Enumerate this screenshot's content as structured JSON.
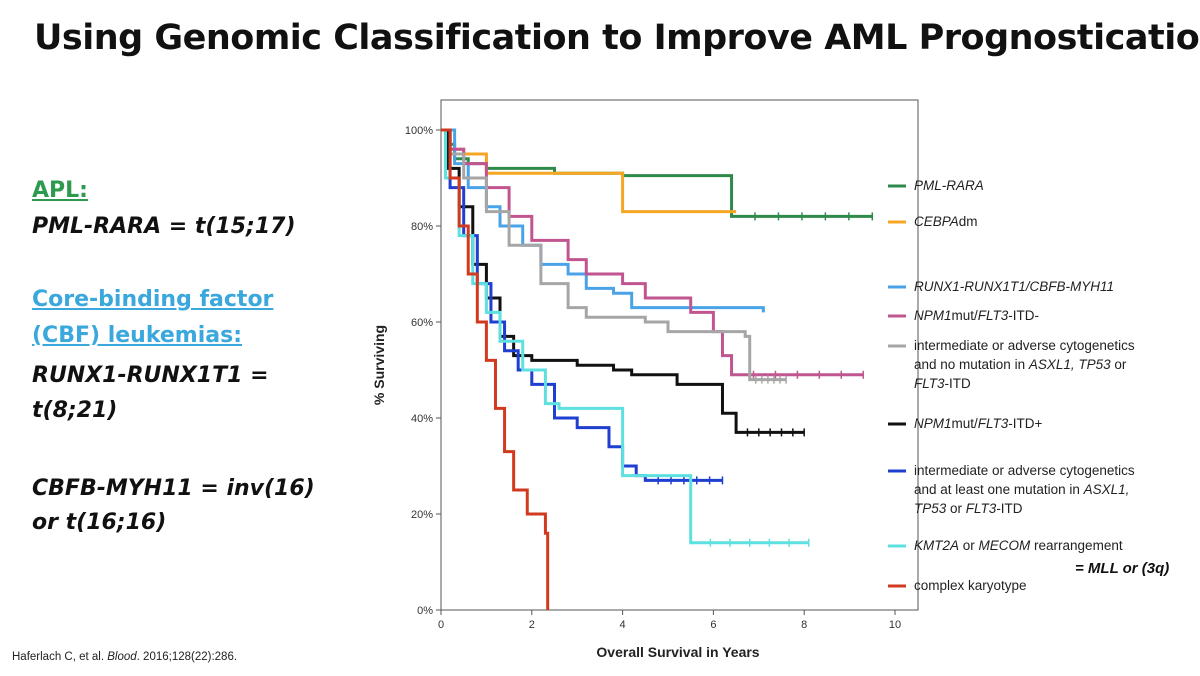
{
  "title": "Using Genomic Classification to Improve AML Prognostication",
  "left_panel": {
    "apl_heading": "APL:",
    "apl_line": "PML-RARA = t(15;17)",
    "cbf_heading_line1": "Core-binding factor",
    "cbf_heading_line2": "(CBF) leukemias:",
    "runx_line1": "RUNX1-RUNX1T1 =",
    "runx_line2": "t(8;21)",
    "cbfb_line1": "CBFB-MYH11 = inv(16)",
    "cbfb_line2": "or t(16;16)"
  },
  "citation": {
    "authors": "Haferlach C, et al. ",
    "journal": "Blood",
    "details": ". 2016;128(22):286."
  },
  "note": "= MLL or (3q)",
  "chart_data": {
    "type": "line",
    "xlabel": "Overall Survival in Years",
    "ylabel": "% Surviving",
    "xlim": [
      0,
      10
    ],
    "ylim": [
      0,
      100
    ],
    "x_ticks": [
      "0",
      "2",
      "4",
      "6",
      "8",
      "10"
    ],
    "y_ticks": [
      "0%",
      "20%",
      "40%",
      "60%",
      "80%",
      "100%"
    ],
    "legend_position": "right",
    "series": [
      {
        "name": "PML-RARA",
        "color": "#2e8a4a",
        "points": [
          [
            0,
            100
          ],
          [
            0.1,
            97
          ],
          [
            0.3,
            94
          ],
          [
            0.6,
            93
          ],
          [
            1.0,
            92
          ],
          [
            2.5,
            91
          ],
          [
            4.0,
            90.5
          ],
          [
            6.4,
            90.5
          ],
          [
            6.4,
            82
          ],
          [
            9.5,
            82
          ]
        ]
      },
      {
        "name": "CEBPAdm",
        "color": "#f5a623",
        "points": [
          [
            0,
            100
          ],
          [
            0.2,
            96
          ],
          [
            0.5,
            95
          ],
          [
            1.0,
            91
          ],
          [
            4.0,
            90
          ],
          [
            4.0,
            83
          ],
          [
            6.5,
            83
          ],
          [
            6.5,
            83
          ]
        ]
      },
      {
        "name": "RUNX1-RUNX1T1/CBFB-MYH11",
        "color": "#4aa3e8",
        "points": [
          [
            0,
            100
          ],
          [
            0.3,
            93
          ],
          [
            0.6,
            88
          ],
          [
            1.0,
            84
          ],
          [
            1.3,
            80
          ],
          [
            1.8,
            76
          ],
          [
            2.2,
            72
          ],
          [
            2.8,
            70
          ],
          [
            3.2,
            67
          ],
          [
            3.8,
            66
          ],
          [
            4.2,
            63
          ],
          [
            7.1,
            62
          ]
        ]
      },
      {
        "name": "NPM1mut/FLT3-ITD-",
        "color": "#c0558f",
        "points": [
          [
            0,
            100
          ],
          [
            0.2,
            96
          ],
          [
            0.5,
            93
          ],
          [
            1.0,
            88
          ],
          [
            1.5,
            82
          ],
          [
            2.0,
            77
          ],
          [
            2.8,
            73
          ],
          [
            3.2,
            70
          ],
          [
            4.0,
            68
          ],
          [
            4.5,
            65
          ],
          [
            5.5,
            62
          ],
          [
            6.0,
            58
          ],
          [
            6.2,
            53
          ],
          [
            6.4,
            49
          ],
          [
            9.3,
            49
          ]
        ]
      },
      {
        "name": "intermediate or adverse cytogenetics and no mutation in ASXL1, TP53 or FLT3-ITD",
        "color": "#a6a6a6",
        "points": [
          [
            0,
            100
          ],
          [
            0.2,
            95
          ],
          [
            0.5,
            90
          ],
          [
            1.0,
            83
          ],
          [
            1.5,
            76
          ],
          [
            2.2,
            68
          ],
          [
            2.8,
            63
          ],
          [
            3.2,
            61
          ],
          [
            4.5,
            60
          ],
          [
            5.0,
            58
          ],
          [
            6.7,
            57
          ],
          [
            6.8,
            48
          ],
          [
            7.6,
            48
          ]
        ]
      },
      {
        "name": "NPM1mut/FLT3-ITD+",
        "color": "#111111",
        "points": [
          [
            0,
            100
          ],
          [
            0.15,
            92
          ],
          [
            0.4,
            84
          ],
          [
            0.7,
            72
          ],
          [
            1.0,
            65
          ],
          [
            1.3,
            57
          ],
          [
            1.6,
            53
          ],
          [
            2.0,
            52
          ],
          [
            3.0,
            51
          ],
          [
            3.8,
            50
          ],
          [
            4.2,
            49
          ],
          [
            5.2,
            47
          ],
          [
            6.2,
            41
          ],
          [
            6.5,
            37
          ],
          [
            8.0,
            37
          ]
        ]
      },
      {
        "name": "intermediate or adverse cytogenetics and at least one mutation in ASXL1, TP53 or FLT3-ITD",
        "color": "#1f3fd1",
        "points": [
          [
            0,
            100
          ],
          [
            0.2,
            88
          ],
          [
            0.5,
            78
          ],
          [
            0.8,
            68
          ],
          [
            1.1,
            60
          ],
          [
            1.4,
            54
          ],
          [
            1.7,
            50
          ],
          [
            2.0,
            47
          ],
          [
            2.5,
            40
          ],
          [
            3.0,
            38
          ],
          [
            3.7,
            34
          ],
          [
            4.0,
            30
          ],
          [
            4.3,
            28
          ],
          [
            4.5,
            27
          ],
          [
            6.2,
            27
          ]
        ]
      },
      {
        "name": "KMT2A or MECOM rearrangement",
        "color": "#5ee0e0",
        "points": [
          [
            0,
            100
          ],
          [
            0.1,
            90
          ],
          [
            0.4,
            78
          ],
          [
            0.7,
            68
          ],
          [
            1.0,
            62
          ],
          [
            1.3,
            56
          ],
          [
            1.8,
            50
          ],
          [
            2.3,
            43
          ],
          [
            2.6,
            42
          ],
          [
            4.0,
            42
          ],
          [
            4.0,
            28
          ],
          [
            5.5,
            28
          ],
          [
            5.5,
            14
          ],
          [
            8.1,
            14
          ]
        ]
      },
      {
        "name": "complex karyotype",
        "color": "#d23a1f",
        "points": [
          [
            0,
            100
          ],
          [
            0.2,
            90
          ],
          [
            0.4,
            80
          ],
          [
            0.6,
            70
          ],
          [
            0.8,
            60
          ],
          [
            1.0,
            52
          ],
          [
            1.2,
            42
          ],
          [
            1.4,
            33
          ],
          [
            1.6,
            25
          ],
          [
            1.9,
            20
          ],
          [
            2.3,
            16
          ],
          [
            2.35,
            0
          ]
        ]
      }
    ]
  },
  "legend": [
    {
      "label_parts": [
        {
          "t": "PML-RARA",
          "i": true
        }
      ],
      "color": "#2e8a4a"
    },
    {
      "label_parts": [
        {
          "t": "CEBPA",
          "i": true
        },
        {
          "t": "dm",
          "i": false
        }
      ],
      "color": "#f5a623"
    },
    {
      "label_parts": [
        {
          "t": "RUNX1-RUNX1T1/CBFB-MYH11",
          "i": true
        }
      ],
      "color": "#4aa3e8"
    },
    {
      "label_parts": [
        {
          "t": "NPM1",
          "i": true
        },
        {
          "t": "mut/",
          "i": false
        },
        {
          "t": "FLT3",
          "i": true
        },
        {
          "t": "-ITD-",
          "i": false
        }
      ],
      "color": "#c0558f"
    },
    {
      "lines": [
        [
          {
            "t": "intermediate or adverse cytogenetics",
            "i": false
          }
        ],
        [
          {
            "t": "and no mutation in ",
            "i": false
          },
          {
            "t": "ASXL1, TP53",
            "i": true
          },
          {
            "t": " or",
            "i": false
          }
        ],
        [
          {
            "t": "FLT3",
            "i": true
          },
          {
            "t": "-ITD",
            "i": false
          }
        ]
      ],
      "color": "#a6a6a6"
    },
    {
      "label_parts": [
        {
          "t": "NPM1",
          "i": true
        },
        {
          "t": "mut/",
          "i": false
        },
        {
          "t": "FLT3",
          "i": true
        },
        {
          "t": "-ITD+",
          "i": false
        }
      ],
      "color": "#111111"
    },
    {
      "lines": [
        [
          {
            "t": "intermediate or adverse cytogenetics",
            "i": false
          }
        ],
        [
          {
            "t": "and at least one mutation in ",
            "i": false
          },
          {
            "t": "ASXL1,",
            "i": true
          }
        ],
        [
          {
            "t": "TP53",
            "i": true
          },
          {
            "t": " or ",
            "i": false
          },
          {
            "t": "FLT3",
            "i": true
          },
          {
            "t": "-ITD",
            "i": false
          }
        ]
      ],
      "color": "#1f3fd1"
    },
    {
      "label_parts": [
        {
          "t": "KMT2A",
          "i": true
        },
        {
          "t": " or ",
          "i": false
        },
        {
          "t": "MECOM",
          "i": true
        },
        {
          "t": " rearrangement",
          "i": false
        }
      ],
      "color": "#5ee0e0"
    },
    {
      "label_parts": [
        {
          "t": "complex karyotype",
          "i": false
        }
      ],
      "color": "#d23a1f"
    }
  ]
}
